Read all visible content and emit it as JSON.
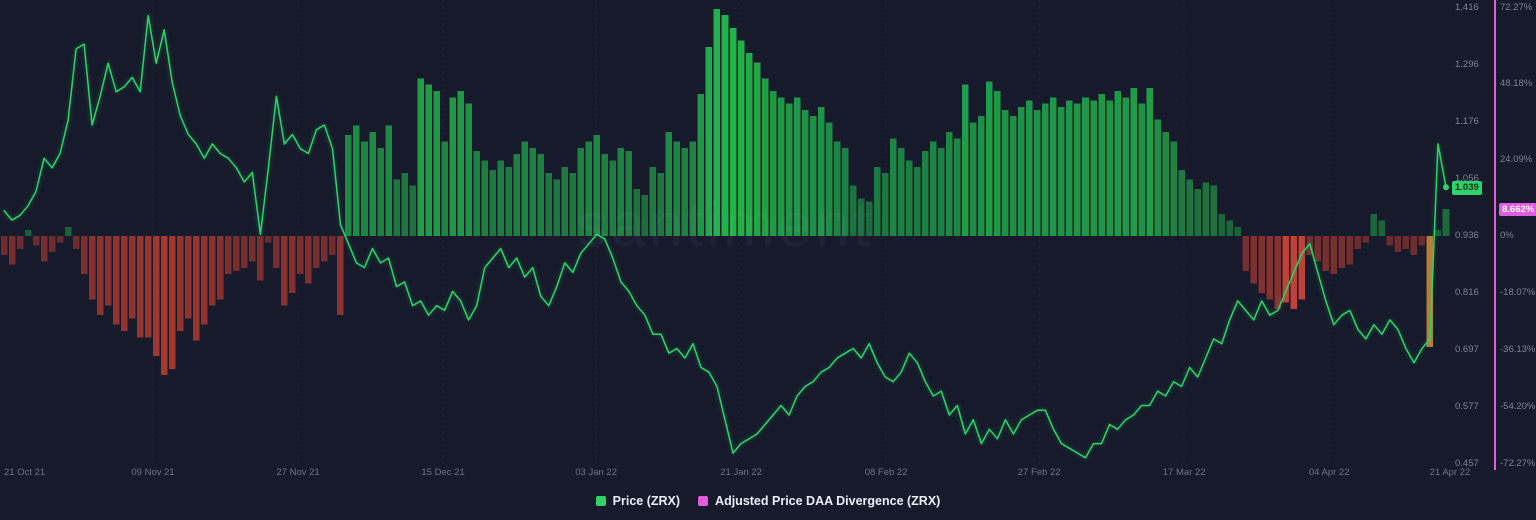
{
  "watermark": "santiment",
  "colors": {
    "background": "#161a2b",
    "price_line": "#2dd366",
    "bar_positive": "#22b24c",
    "bar_negative": "#a93a32",
    "bar_negative_bright": "#d1463a",
    "bar_highlight": "#c2813b",
    "divergence_accent": "#e05ce0",
    "axis_text": "#7e8398",
    "grid": "rgba(255,255,255,0.05)",
    "price_badge_bg": "#2dd36a",
    "price_badge_text": "#07300f",
    "divergence_badge_bg": "#e05ce0",
    "divergence_badge_text": "#ffffff"
  },
  "legend": {
    "items": [
      {
        "label": "Price (ZRX)",
        "color": "#2dd366"
      },
      {
        "label": "Adjusted Price DAA Divergence (ZRX)",
        "color": "#e05ce0"
      }
    ]
  },
  "chart_data": {
    "type": "bar+line",
    "title": "",
    "x_ticks": {
      "labels": [
        "21 Oct 21",
        "09 Nov 21",
        "27 Nov 21",
        "15 Dec 21",
        "03 Jan 22",
        "21 Jan 22",
        "08 Feb 22",
        "27 Feb 22",
        "17 Mar 22",
        "04 Apr 22",
        "21 Apr 22"
      ],
      "indices": [
        0,
        19,
        37,
        55,
        74,
        92,
        110,
        129,
        147,
        165,
        180
      ]
    },
    "price_axis": {
      "min": 0.457,
      "max": 1.416,
      "zero_baseline": 0.936,
      "tick_labels": [
        "1.416",
        "1.296",
        "1.176",
        "1.056",
        "0.936",
        "0.816",
        "0.697",
        "0.577",
        "0.457"
      ],
      "tick_values": [
        1.416,
        1.296,
        1.176,
        1.056,
        0.936,
        0.816,
        0.697,
        0.577,
        0.457
      ],
      "current_label": "1.039",
      "current_value": 1.039
    },
    "pct_axis": {
      "min": -72.27,
      "max": 72.27,
      "tick_labels": [
        "72.27%",
        "48.18%",
        "24.09%",
        "0%",
        "-18.07%",
        "-36.13%",
        "-54.20%",
        "-72.27%"
      ],
      "tick_values": [
        72.27,
        48.18,
        24.09,
        0,
        -18.07,
        -36.13,
        -54.2,
        -72.27
      ],
      "current_label": "8.662%",
      "current_value": 8.662
    },
    "series": [
      {
        "name": "Price (ZRX)",
        "type": "line",
        "color": "#2dd366",
        "values": [
          0.99,
          0.97,
          0.98,
          1.0,
          1.03,
          1.1,
          1.08,
          1.11,
          1.18,
          1.33,
          1.34,
          1.17,
          1.23,
          1.3,
          1.24,
          1.25,
          1.27,
          1.24,
          1.4,
          1.3,
          1.37,
          1.26,
          1.19,
          1.15,
          1.13,
          1.1,
          1.13,
          1.11,
          1.1,
          1.08,
          1.05,
          1.07,
          0.94,
          1.08,
          1.23,
          1.13,
          1.15,
          1.12,
          1.11,
          1.16,
          1.17,
          1.12,
          0.96,
          0.92,
          0.88,
          0.87,
          0.91,
          0.88,
          0.89,
          0.83,
          0.84,
          0.79,
          0.8,
          0.77,
          0.79,
          0.78,
          0.82,
          0.8,
          0.76,
          0.79,
          0.87,
          0.89,
          0.91,
          0.87,
          0.89,
          0.85,
          0.87,
          0.81,
          0.79,
          0.83,
          0.88,
          0.86,
          0.9,
          0.92,
          0.94,
          0.93,
          0.89,
          0.84,
          0.82,
          0.79,
          0.77,
          0.73,
          0.73,
          0.69,
          0.7,
          0.68,
          0.71,
          0.66,
          0.65,
          0.62,
          0.55,
          0.48,
          0.5,
          0.51,
          0.52,
          0.54,
          0.56,
          0.58,
          0.56,
          0.6,
          0.62,
          0.63,
          0.65,
          0.66,
          0.68,
          0.69,
          0.7,
          0.68,
          0.71,
          0.67,
          0.64,
          0.63,
          0.65,
          0.69,
          0.67,
          0.63,
          0.6,
          0.61,
          0.56,
          0.58,
          0.52,
          0.55,
          0.5,
          0.53,
          0.51,
          0.55,
          0.52,
          0.55,
          0.56,
          0.57,
          0.57,
          0.53,
          0.5,
          0.49,
          0.48,
          0.47,
          0.5,
          0.5,
          0.54,
          0.53,
          0.55,
          0.56,
          0.58,
          0.58,
          0.61,
          0.6,
          0.63,
          0.62,
          0.66,
          0.64,
          0.68,
          0.72,
          0.71,
          0.76,
          0.8,
          0.78,
          0.76,
          0.8,
          0.77,
          0.78,
          0.82,
          0.86,
          0.9,
          0.92,
          0.86,
          0.8,
          0.75,
          0.77,
          0.78,
          0.74,
          0.72,
          0.75,
          0.73,
          0.76,
          0.74,
          0.7,
          0.67,
          0.7,
          0.72,
          1.13,
          1.039
        ]
      },
      {
        "name": "Adjusted Price DAA Divergence (ZRX)",
        "type": "bar",
        "color_positive": "#22b24c",
        "color_negative": "#a93a32",
        "color_negative_bright": "#d1463a",
        "color_highlight": "#c2813b",
        "bright_negative_indices": [
          160,
          161,
          162
        ],
        "highlight_indices": [
          178
        ],
        "values": [
          -6,
          -9,
          -4,
          2,
          -3,
          -8,
          -5,
          -2,
          3,
          -4,
          -12,
          -20,
          -25,
          -22,
          -28,
          -30,
          -26,
          -32,
          -32,
          -38,
          -44,
          -42,
          -30,
          -26,
          -33,
          -28,
          -22,
          -20,
          -12,
          -11,
          -10,
          -8,
          -14,
          -2,
          -10,
          -22,
          -18,
          -12,
          -15,
          -10,
          -8,
          -6,
          -25,
          32,
          35,
          30,
          33,
          28,
          35,
          18,
          20,
          16,
          50,
          48,
          46,
          30,
          44,
          46,
          42,
          27,
          24,
          21,
          24,
          22,
          26,
          30,
          28,
          26,
          20,
          18,
          22,
          20,
          28,
          30,
          32,
          26,
          24,
          28,
          27,
          15,
          13,
          22,
          20,
          33,
          30,
          28,
          30,
          45,
          60,
          72,
          70,
          66,
          62,
          58,
          55,
          50,
          46,
          44,
          42,
          44,
          40,
          38,
          41,
          36,
          30,
          28,
          16,
          12,
          11,
          22,
          20,
          31,
          28,
          24,
          22,
          27,
          30,
          28,
          33,
          31,
          48,
          36,
          38,
          49,
          46,
          40,
          38,
          41,
          43,
          40,
          42,
          44,
          41,
          43,
          42,
          44,
          43,
          45,
          43,
          46,
          44,
          47,
          42,
          47,
          37,
          33,
          30,
          21,
          18,
          15,
          17,
          16,
          7,
          5,
          3,
          -11,
          -15,
          -18,
          -20,
          -23,
          -21,
          -23,
          -20,
          -6,
          -8,
          -11,
          -12,
          -10,
          -9,
          -4,
          -2,
          7,
          5,
          -3,
          -5,
          -4,
          -6,
          -3,
          -35,
          2,
          8.662
        ]
      }
    ]
  }
}
